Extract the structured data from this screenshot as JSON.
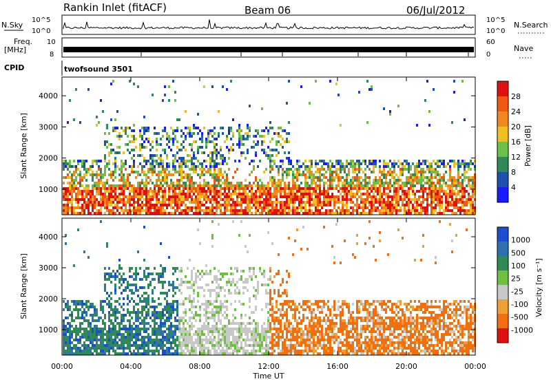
{
  "header": {
    "station": "Rankin Inlet (fitACF)",
    "beam": "Beam 06",
    "date": "06/Jul/2012"
  },
  "params": {
    "nsky_label": "N.Sky",
    "nsearch_label": "N.Search",
    "freq_label_line1": "Freq.",
    "freq_label_line2": "[MHz]",
    "nave_label": "Nave",
    "cpid_label": "CPID",
    "cpid_value": "twofsound 3501",
    "nsky_ticks": [
      "10^5",
      "10^0"
    ],
    "nsearch_ticks": [
      "10^5",
      "10^0"
    ],
    "freq_ticks": [
      "10",
      "8"
    ],
    "nave_ticks": [
      "60",
      "0"
    ]
  },
  "colors": {
    "power_scale": [
      "#1a1aff",
      "#1f4fb0",
      "#2f8a55",
      "#6cc04a",
      "#f0c020",
      "#f08a20",
      "#f05a10",
      "#e01010"
    ],
    "velocity_scale": [
      "#1a4fd0",
      "#2f70b0",
      "#2f8a55",
      "#70c040",
      "#c8c8c8",
      "#f0a030",
      "#f07010",
      "#e01010"
    ]
  },
  "chart_data": [
    {
      "type": "heatmap",
      "title": "Power",
      "ylabel": "Slant Range [km]",
      "xlabel": "",
      "x_ticks": [
        "00:00",
        "04:00",
        "08:00",
        "12:00",
        "16:00",
        "20:00",
        "00:00"
      ],
      "y_ticks": [
        "1000",
        "2000",
        "3000",
        "4000"
      ],
      "ylim": [
        180,
        4600
      ],
      "colorbar": {
        "label": "Power [dB]",
        "ticks": [
          "4",
          "8",
          "12",
          "16",
          "20",
          "24",
          "28"
        ],
        "range": [
          0,
          30
        ]
      }
    },
    {
      "type": "heatmap",
      "title": "Velocity",
      "ylabel": "Slant Range [km]",
      "xlabel": "Time UT",
      "x_ticks": [
        "00:00",
        "04:00",
        "08:00",
        "12:00",
        "16:00",
        "20:00",
        "00:00"
      ],
      "y_ticks": [
        "1000",
        "2000",
        "3000",
        "4000"
      ],
      "ylim": [
        180,
        4600
      ],
      "colorbar": {
        "label": "Velocity [m s⁻¹]",
        "ticks": [
          "1000",
          "500",
          "100",
          "25",
          "-25",
          "-100",
          "-500",
          "-1000"
        ]
      }
    }
  ]
}
